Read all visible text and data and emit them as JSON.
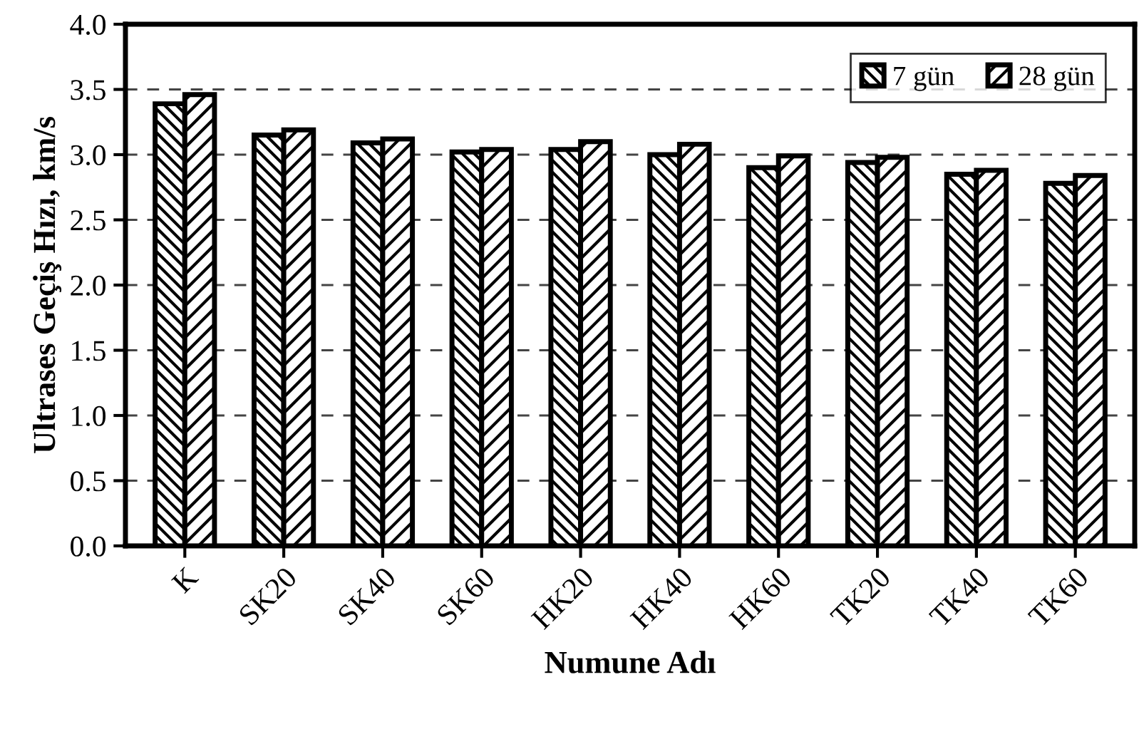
{
  "chart_data": {
    "type": "bar",
    "xlabel": "Numune Adı",
    "ylabel": "Ultrases Geçiş Hızı, km/s",
    "categories": [
      "K",
      "SK20",
      "SK40",
      "SK60",
      "HK20",
      "HK40",
      "HK60",
      "TK20",
      "TK40",
      "TK60"
    ],
    "series": [
      {
        "name": "7 gün",
        "color": "#000000",
        "values": [
          3.39,
          3.15,
          3.09,
          3.02,
          3.04,
          3.0,
          2.9,
          2.94,
          2.85,
          2.78
        ]
      },
      {
        "name": "28 gün",
        "color": "#000000",
        "values": [
          3.46,
          3.19,
          3.12,
          3.04,
          3.1,
          3.08,
          2.99,
          2.98,
          2.88,
          2.84
        ]
      }
    ],
    "ylim": [
      0,
      4.0
    ],
    "yticks": [
      {
        "value": 0,
        "label": "0.0"
      },
      {
        "value": 0.5,
        "label": "0.5"
      },
      {
        "value": 1.0,
        "label": "1.0"
      },
      {
        "value": 1.5,
        "label": "1.5"
      },
      {
        "value": 2.0,
        "label": "2.0"
      },
      {
        "value": 2.5,
        "label": "2.5"
      },
      {
        "value": 3.0,
        "label": "3.0"
      },
      {
        "value": 3.5,
        "label": "3.5"
      },
      {
        "value": 4.0,
        "label": "4.0"
      }
    ],
    "grid": "y",
    "legend": "top right"
  }
}
